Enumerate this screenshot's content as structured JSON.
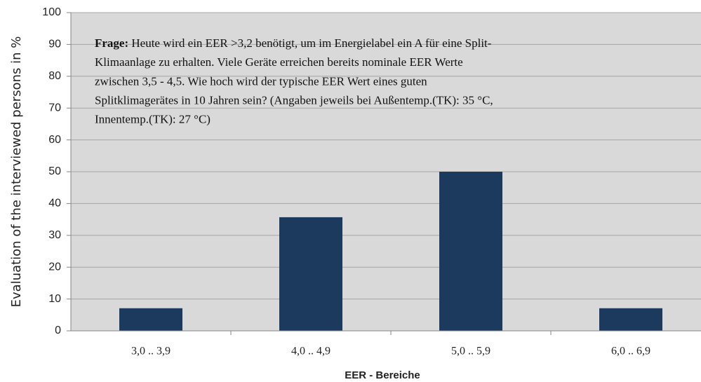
{
  "chart_data": {
    "type": "bar",
    "xlabel": "EER - Bereiche",
    "ylabel": "Evaluation of the interviewed persons in %",
    "annotation": {
      "label": "Frage:",
      "lines": [
        "Heute wird ein EER >3,2 benötigt, um im Energielabel ein A für eine Split-",
        "Klimaanlage zu erhalten. Viele Geräte erreichen bereits nominale EER Werte",
        "zwischen 3,5 - 4,5. Wie hoch wird der typische EER Wert eines guten",
        "Splitklimagerätes in 10 Jahren sein? (Angaben jeweils bei Außentemp.(TK): 35 °C,",
        "Innentemp.(TK): 27 °C)"
      ]
    },
    "categories": [
      "3,0 .. 3,9",
      "4,0 .. 4,9",
      "5,0 .. 5,9",
      "6,0 .. 6,9"
    ],
    "values": [
      7.1,
      35.7,
      50,
      7.1
    ],
    "color": "#1b3a5e",
    "ylim": [
      0,
      100
    ],
    "yticks": [
      0,
      10,
      20,
      30,
      40,
      50,
      60,
      70,
      80,
      90,
      100
    ],
    "grid": true
  }
}
